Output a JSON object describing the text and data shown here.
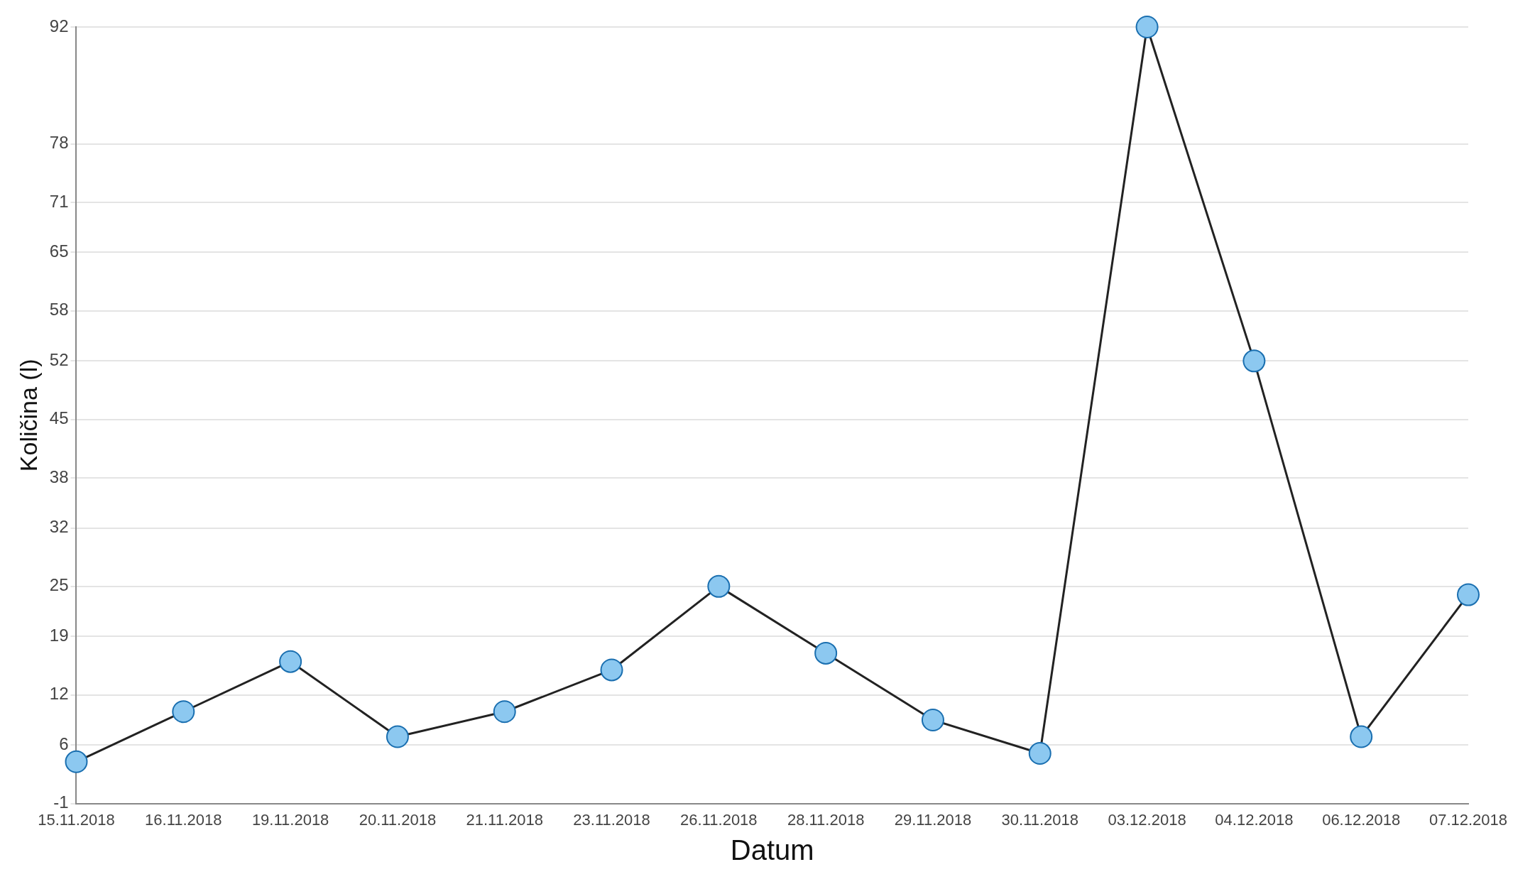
{
  "chart_data": {
    "type": "line",
    "xlabel": "Datum",
    "ylabel": "Količina (l)",
    "categories": [
      "15.11.2018",
      "16.11.2018",
      "19.11.2018",
      "20.11.2018",
      "21.11.2018",
      "23.11.2018",
      "26.11.2018",
      "28.11.2018",
      "29.11.2018",
      "30.11.2018",
      "03.12.2018",
      "04.12.2018",
      "06.12.2018",
      "07.12.2018"
    ],
    "series": [
      {
        "color": "#222222",
        "values": [
          4,
          10,
          16,
          7,
          10,
          15,
          25,
          17,
          9,
          5,
          92,
          52,
          7,
          24
        ]
      }
    ],
    "ylim": [
      -1,
      92
    ],
    "yticks": [
      -1,
      6,
      12,
      19,
      25,
      32,
      38,
      45,
      52,
      58,
      65,
      71,
      78,
      92
    ],
    "grid": "y",
    "marker": "circle",
    "line_style": "solid",
    "legend": false
  }
}
